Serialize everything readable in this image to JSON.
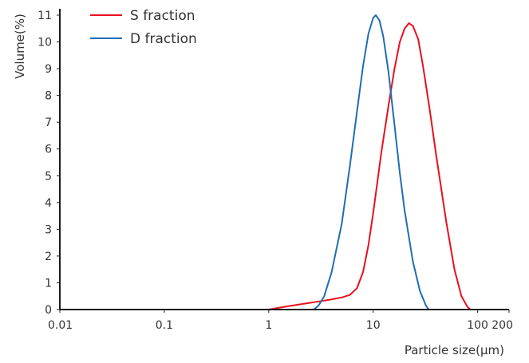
{
  "chart_data": {
    "type": "line",
    "x_scale": "log",
    "xlim": [
      0.01,
      200
    ],
    "ylim": [
      0,
      11
    ],
    "grid": false,
    "legend_position": "top-left",
    "xlabel": "Particle size(μm)",
    "ylabel": "Volume(%)",
    "x_ticks": [
      {
        "value": 0.01,
        "label": "0.01"
      },
      {
        "value": 0.1,
        "label": "0.1"
      },
      {
        "value": 1,
        "label": "1"
      },
      {
        "value": 10,
        "label": "10"
      },
      {
        "value": 100,
        "label": "100"
      },
      {
        "value": 200,
        "label": "200"
      }
    ],
    "y_ticks": [
      {
        "value": 0,
        "label": "0"
      },
      {
        "value": 1,
        "label": "1"
      },
      {
        "value": 2,
        "label": "2"
      },
      {
        "value": 3,
        "label": "3"
      },
      {
        "value": 4,
        "label": "4"
      },
      {
        "value": 5,
        "label": "5"
      },
      {
        "value": 6,
        "label": "6"
      },
      {
        "value": 7,
        "label": "7"
      },
      {
        "value": 8,
        "label": "8"
      },
      {
        "value": 9,
        "label": "9"
      },
      {
        "value": 10,
        "label": "10"
      },
      {
        "value": 11,
        "label": "11"
      }
    ],
    "series": [
      {
        "name": "S fraction",
        "color": "#e8101e",
        "points": [
          [
            1.0,
            0
          ],
          [
            1.5,
            0.12
          ],
          [
            2.2,
            0.22
          ],
          [
            3.0,
            0.3
          ],
          [
            4.0,
            0.38
          ],
          [
            5.0,
            0.45
          ],
          [
            6.0,
            0.55
          ],
          [
            7.0,
            0.8
          ],
          [
            8.0,
            1.4
          ],
          [
            9.0,
            2.4
          ],
          [
            10.0,
            3.6
          ],
          [
            11.0,
            4.8
          ],
          [
            12.0,
            5.9
          ],
          [
            14.0,
            7.6
          ],
          [
            16.0,
            9.0
          ],
          [
            18.0,
            10.0
          ],
          [
            20.0,
            10.5
          ],
          [
            22.0,
            10.7
          ],
          [
            24.0,
            10.6
          ],
          [
            27.0,
            10.1
          ],
          [
            30.0,
            9.1
          ],
          [
            35.0,
            7.4
          ],
          [
            40.0,
            5.8
          ],
          [
            50.0,
            3.3
          ],
          [
            60.0,
            1.5
          ],
          [
            70.0,
            0.5
          ],
          [
            80.0,
            0.1
          ],
          [
            85.0,
            0
          ]
        ]
      },
      {
        "name": "D fraction",
        "color": "#1f6db3",
        "points": [
          [
            2.7,
            0
          ],
          [
            3.0,
            0.15
          ],
          [
            3.4,
            0.5
          ],
          [
            4.0,
            1.4
          ],
          [
            5.0,
            3.2
          ],
          [
            6.0,
            5.4
          ],
          [
            7.0,
            7.4
          ],
          [
            8.0,
            9.1
          ],
          [
            9.0,
            10.3
          ],
          [
            10.0,
            10.9
          ],
          [
            10.6,
            11.0
          ],
          [
            11.5,
            10.8
          ],
          [
            12.5,
            10.2
          ],
          [
            14.0,
            8.9
          ],
          [
            16.0,
            6.9
          ],
          [
            18.0,
            5.1
          ],
          [
            20.0,
            3.7
          ],
          [
            24.0,
            1.8
          ],
          [
            28.0,
            0.7
          ],
          [
            32.0,
            0.15
          ],
          [
            34.0,
            0
          ]
        ]
      }
    ]
  }
}
